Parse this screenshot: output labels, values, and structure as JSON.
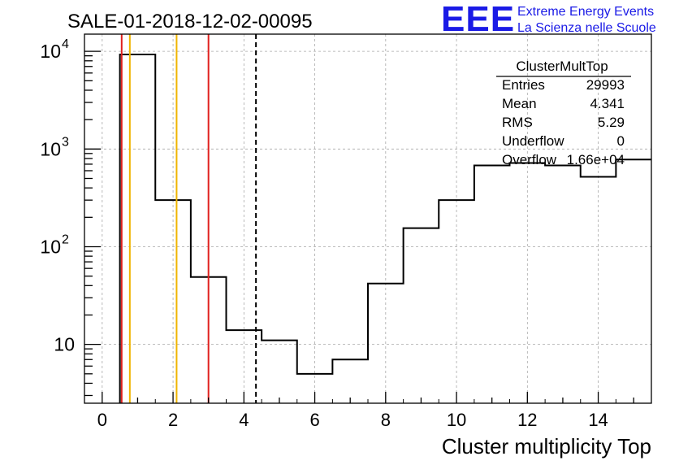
{
  "chart_data": {
    "type": "histogram",
    "title": "SALE-01-2018-12-02-00095",
    "xlabel": "Cluster multiplicity Top",
    "ylabel": "",
    "y_scale": "log",
    "grid": true,
    "xlim": [
      -0.5,
      15.5
    ],
    "ylim": [
      2.5,
      15000
    ],
    "x_ticks": [
      0,
      2,
      4,
      6,
      8,
      10,
      12,
      14
    ],
    "x_tick_labels": [
      "0",
      "2",
      "4",
      "6",
      "8",
      "10",
      "12",
      "14"
    ],
    "y_ticks": [
      {
        "value": 10,
        "label": "10",
        "exp": ""
      },
      {
        "value": 100,
        "label": "10",
        "exp": "2"
      },
      {
        "value": 1000,
        "label": "10",
        "exp": "3"
      },
      {
        "value": 10000,
        "label": "10",
        "exp": "4"
      }
    ],
    "bin_edges": [
      0.5,
      1.5,
      2.5,
      3.5,
      4.5,
      5.5,
      6.5,
      7.5,
      8.5,
      9.5,
      10.5,
      11.5,
      12.5,
      13.5,
      14.5,
      15.5
    ],
    "counts": [
      9300,
      300,
      49,
      14,
      11,
      5,
      7,
      42,
      155,
      300,
      680,
      720,
      680,
      520,
      780
    ],
    "vertical_lines": [
      {
        "x": 0.55,
        "color": "#e0201e",
        "style": "solid"
      },
      {
        "x": 0.78,
        "color": "#f0b400",
        "style": "solid"
      },
      {
        "x": 2.1,
        "color": "#f0b400",
        "style": "solid"
      },
      {
        "x": 3.0,
        "color": "#e0201e",
        "style": "solid"
      },
      {
        "x": 4.34,
        "color": "#000000",
        "style": "dashed"
      }
    ],
    "stats_box": {
      "title": "ClusterMultTop",
      "rows": [
        {
          "label": "Entries",
          "value": "29993"
        },
        {
          "label": "Mean",
          "value": "4.341"
        },
        {
          "label": "RMS",
          "value": "5.29"
        },
        {
          "label": "Underflow",
          "value": "0"
        },
        {
          "label": "Overflow",
          "value": "1.66e+04"
        }
      ]
    }
  },
  "logo": {
    "text": "EEE",
    "line1": "Extreme Energy Events",
    "line2": "La Scienza nelle Scuole",
    "color": "#1a1ae6"
  }
}
